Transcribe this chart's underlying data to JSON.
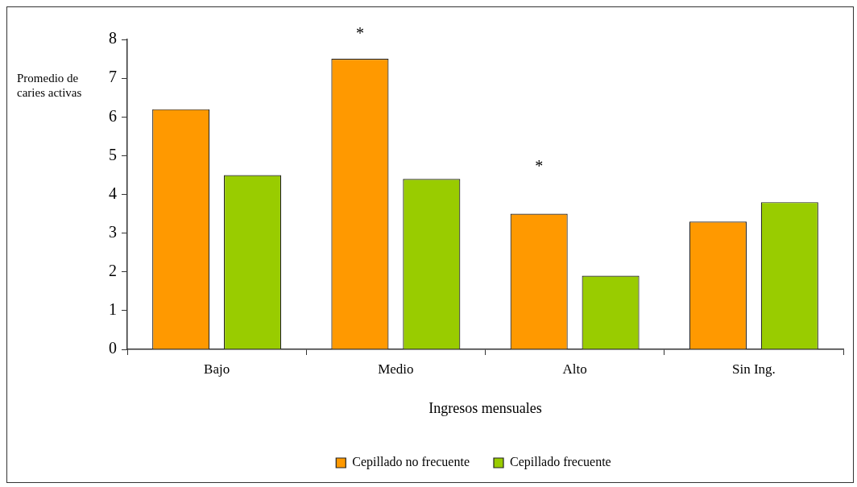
{
  "chart_data": {
    "type": "bar",
    "xlabel": "Ingresos mensuales",
    "ylabel": "Promedio de caries activas",
    "categories": [
      "Bajo",
      "Medio",
      "Alto",
      "Sin Ing."
    ],
    "series": [
      {
        "name": "Cepillado no frecuente",
        "color": "#ff9900",
        "values": [
          6.2,
          7.5,
          3.5,
          3.3
        ]
      },
      {
        "name": "Cepillado frecuente",
        "color": "#99cc00",
        "values": [
          4.5,
          4.4,
          1.9,
          3.8
        ]
      }
    ],
    "ylim": [
      0,
      8
    ],
    "yticks": [
      0,
      1,
      2,
      3,
      4,
      5,
      6,
      7,
      8
    ],
    "legend": "bottom",
    "annotations": [
      "*",
      "*"
    ]
  }
}
